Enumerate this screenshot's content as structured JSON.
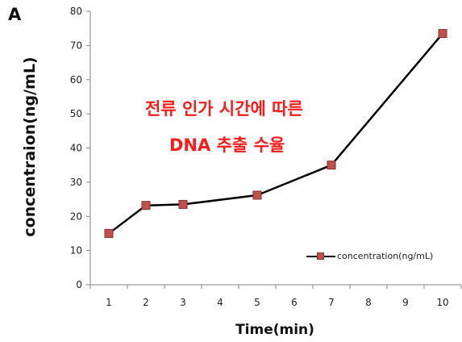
{
  "panel_label": "A",
  "annotation": {
    "line1": "전류 인가 시간에 따른",
    "line2": "DNA 추출 수율"
  },
  "colors": {
    "series_line": "#000000",
    "marker_fill": "#c0504d",
    "marker_stroke": "#8a2f2c",
    "annotation": "#ff1a1a",
    "axis": "#868686"
  },
  "chart_data": {
    "type": "line",
    "title": "",
    "xlabel": "Time(min)",
    "ylabel": "concentraion(ng/mL)",
    "categories": [
      "1",
      "2",
      "3",
      "4",
      "5",
      "6",
      "7",
      "8",
      "9",
      "10"
    ],
    "series": [
      {
        "name": "concentration(ng/mL)",
        "points": [
          {
            "x": "1",
            "y": 15
          },
          {
            "x": "2",
            "y": 23.2
          },
          {
            "x": "3",
            "y": 23.5
          },
          {
            "x": "5",
            "y": 26.2
          },
          {
            "x": "7",
            "y": 35
          },
          {
            "x": "10",
            "y": 73.5
          }
        ]
      }
    ],
    "ylim": [
      0,
      80
    ],
    "yticks": [
      0,
      10,
      20,
      30,
      40,
      50,
      60,
      70,
      80
    ],
    "grid": false,
    "legend": "inside-bottom-right"
  }
}
